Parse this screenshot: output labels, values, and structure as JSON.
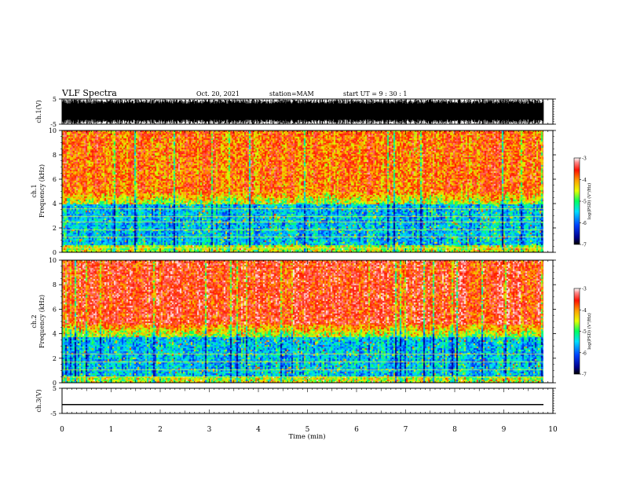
{
  "header": {
    "title": "VLF Spectra",
    "date": "Oct. 20, 2021",
    "station": "station=MAM",
    "start": "start  UT =   9 : 30 : 1"
  },
  "chart_data": [
    {
      "type": "line",
      "panel": "ch1-waveform",
      "ylabel": "ch.1(V)",
      "ytick_labels": [
        "5",
        "-5"
      ],
      "ylim": [
        -5,
        5
      ],
      "xlim": [
        0,
        10
      ],
      "description_of_trace": "dense broadband waveform filling full range"
    },
    {
      "type": "heatmap",
      "panel": "ch1-spectrogram",
      "ylabel": "ch.1\nFrequency (kHz)",
      "ylim": [
        0,
        10
      ],
      "xlim": [
        0,
        10
      ],
      "ytick_labels": [
        "0",
        "2",
        "4",
        "6",
        "8",
        "10"
      ],
      "colorbar": {
        "label": "log(PSD) (V²/Hz)",
        "ticks": [
          "-3",
          "-4",
          "-5",
          "-6",
          "-7"
        ],
        "range": [
          -7,
          -3
        ]
      },
      "colors": [
        "#00008c",
        "#0040ff",
        "#00e0ff",
        "#00ff60",
        "#e8ff00",
        "#ffa000",
        "#ff1000",
        "#ff8c8c",
        "#ffffff"
      ]
    },
    {
      "type": "heatmap",
      "panel": "ch2-spectrogram",
      "ylabel": "ch.2\nFrequency (kHz)",
      "ylim": [
        0,
        10
      ],
      "xlim": [
        0,
        10
      ],
      "ytick_labels": [
        "0",
        "2",
        "4",
        "6",
        "8",
        "10"
      ],
      "colorbar": {
        "label": "log(PSD) (V²/Hz)",
        "ticks": [
          "-3",
          "-4",
          "-5",
          "-6",
          "-7"
        ],
        "range": [
          -7,
          -3
        ]
      }
    },
    {
      "type": "line",
      "panel": "ch3-waveform",
      "ylabel": "ch.3(V)",
      "ytick_labels": [
        "5",
        "-5"
      ],
      "ylim": [
        -5,
        5
      ],
      "xlim": [
        0,
        10
      ],
      "series": [
        {
          "values": [
            -1.5,
            -1.5
          ]
        }
      ]
    }
  ],
  "xaxis": {
    "label": "Time  (min)",
    "ticks": [
      "0",
      "1",
      "2",
      "3",
      "4",
      "5",
      "6",
      "7",
      "8",
      "9",
      "10"
    ],
    "range": [
      0,
      10
    ]
  }
}
